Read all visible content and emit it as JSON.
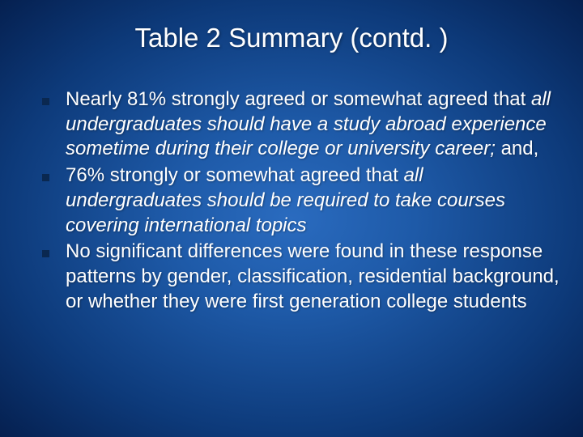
{
  "slide": {
    "title": "Table 2 Summary (contd. )",
    "background_gradient": {
      "center": "#2a6bbf",
      "mid": "#1e5aa8",
      "outer": "#0d3a7a",
      "edge": "#052050"
    },
    "title_fontsize": 33,
    "title_color": "#ffffff",
    "body_fontsize": 24,
    "body_color": "#ffffff",
    "bullet_color": "#0a2850",
    "bullet_size": 9,
    "bullets": [
      {
        "pre": "Nearly 81% strongly agreed or somewhat agreed that ",
        "italic": "all undergraduates should have a study abroad experience sometime during their college or university career;",
        "post": " and,"
      },
      {
        "pre": "76% strongly or somewhat agreed that ",
        "italic": "all undergraduates should be required to take courses covering international topics",
        "post": ""
      },
      {
        "pre": "No significant differences were found in these response patterns by gender, classification, residential background, or whether they were first generation college students",
        "italic": "",
        "post": ""
      }
    ]
  }
}
